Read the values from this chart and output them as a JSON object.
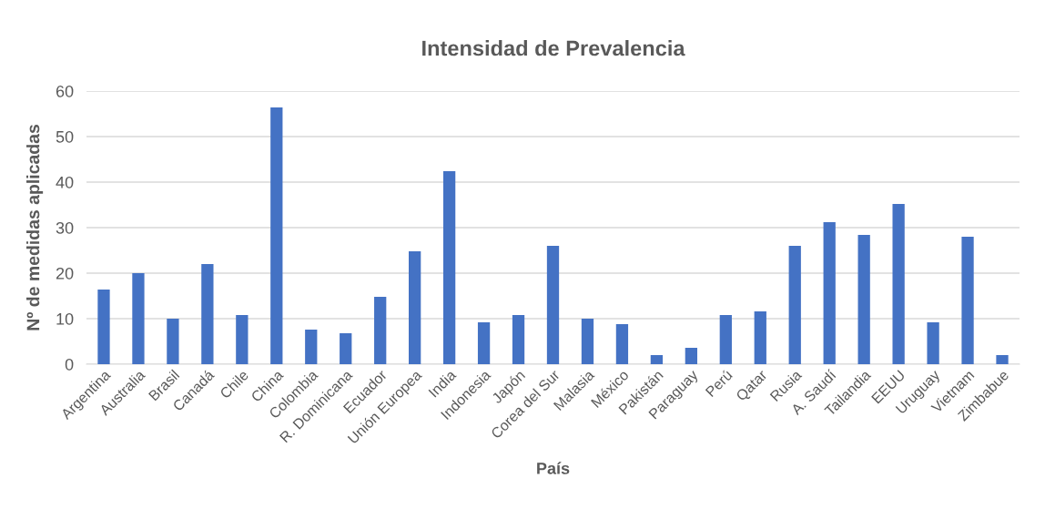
{
  "chart_data": {
    "type": "bar",
    "title": "Intensidad de Prevalencia",
    "xlabel": "País",
    "ylabel": "Nº de medidas aplicadas",
    "categories": [
      "Argentina",
      "Australia",
      "Brasil",
      "Canadá",
      "Chile",
      "China",
      "Colombia",
      "R. Dominicana",
      "Ecuador",
      "Unión Europea",
      "India",
      "Indonesia",
      "Japón",
      "Corea del Sur",
      "Malasia",
      "México",
      "Pakistán",
      "Paraguay",
      "Perú",
      "Qatar",
      "Rusia",
      "A. Saudí",
      "Tailandia",
      "EEUU",
      "Uruguay",
      "Vietnam",
      "Zimbabue"
    ],
    "values": [
      16.4,
      20,
      10,
      22,
      10.8,
      56.4,
      7.6,
      6.8,
      14.8,
      24.8,
      42.4,
      9.2,
      10.8,
      26,
      10,
      8.8,
      2,
      3.6,
      10.8,
      11.6,
      26,
      31.2,
      28.4,
      35.2,
      9.2,
      28,
      2
    ],
    "color": "#4472c4",
    "ylim": [
      0,
      60
    ],
    "yticks": [
      0,
      10,
      20,
      30,
      40,
      50,
      60
    ],
    "grid": "y",
    "legend": false
  }
}
